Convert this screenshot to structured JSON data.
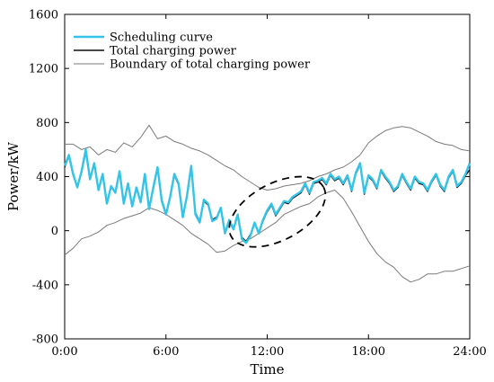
{
  "chart_data": {
    "type": "line",
    "title": "",
    "xlabel": "Time",
    "ylabel": "Power/kW",
    "xlim": [
      0,
      24
    ],
    "ylim": [
      -800,
      1600
    ],
    "x_ticks": [
      0,
      6,
      12,
      18,
      24
    ],
    "x_tick_labels": [
      "0:00",
      "6:00",
      "12:00",
      "18:00",
      "24:00"
    ],
    "y_ticks": [
      -800,
      -400,
      0,
      400,
      800,
      1200,
      1600
    ],
    "y_tick_labels": [
      "-800",
      "-400",
      "0",
      "400",
      "800",
      "1200",
      "1600"
    ],
    "grid": false,
    "legend": {
      "placement": "top-left",
      "entries": [
        "Scheduling curve",
        "Total charging power",
        "Boundary of total charging power"
      ]
    },
    "annotation": {
      "type": "dashed-ellipse",
      "center": [
        12.6,
        140
      ],
      "radius_x_hours": 3.1,
      "radius_y_kw": 210,
      "rotation_deg": -28
    },
    "series": [
      {
        "name": "Scheduling curve",
        "color": "#33c4e8",
        "x": [
          0.0,
          0.25,
          0.5,
          0.75,
          1.0,
          1.25,
          1.5,
          1.75,
          2.0,
          2.25,
          2.5,
          2.75,
          3.0,
          3.25,
          3.5,
          3.75,
          4.0,
          4.25,
          4.5,
          4.75,
          5.0,
          5.25,
          5.5,
          5.75,
          6.0,
          6.25,
          6.5,
          6.75,
          7.0,
          7.25,
          7.5,
          7.75,
          8.0,
          8.25,
          8.5,
          8.75,
          9.0,
          9.25,
          9.5,
          9.75,
          10.0,
          10.25,
          10.5,
          10.75,
          11.0,
          11.25,
          11.5,
          11.75,
          12.0,
          12.25,
          12.5,
          12.75,
          13.0,
          13.25,
          13.5,
          13.75,
          14.0,
          14.25,
          14.5,
          14.75,
          15.0,
          15.25,
          15.5,
          15.75,
          16.0,
          16.25,
          16.5,
          16.75,
          17.0,
          17.25,
          17.5,
          17.75,
          18.0,
          18.25,
          18.5,
          18.75,
          19.0,
          19.25,
          19.5,
          19.75,
          20.0,
          20.25,
          20.5,
          20.75,
          21.0,
          21.25,
          21.5,
          21.75,
          22.0,
          22.25,
          22.5,
          22.75,
          23.0,
          23.25,
          23.5,
          23.75,
          24.0
        ],
        "values": [
          480,
          560,
          420,
          320,
          440,
          600,
          380,
          500,
          300,
          420,
          200,
          330,
          280,
          440,
          200,
          350,
          180,
          320,
          210,
          420,
          160,
          320,
          470,
          220,
          120,
          250,
          420,
          350,
          100,
          260,
          480,
          120,
          60,
          230,
          200,
          70,
          90,
          170,
          -20,
          80,
          10,
          120,
          -60,
          -90,
          -40,
          60,
          -20,
          80,
          150,
          200,
          120,
          170,
          220,
          210,
          250,
          270,
          290,
          350,
          280,
          360,
          370,
          390,
          350,
          420,
          380,
          400,
          350,
          410,
          300,
          430,
          500,
          280,
          410,
          380,
          320,
          450,
          400,
          360,
          300,
          330,
          420,
          360,
          310,
          400,
          360,
          350,
          300,
          370,
          420,
          340,
          300,
          400,
          450,
          330,
          360,
          420,
          500
        ]
      },
      {
        "name": "Total charging power",
        "color": "#0d0d0d",
        "x": [
          0.0,
          0.25,
          0.5,
          0.75,
          1.0,
          1.25,
          1.5,
          1.75,
          2.0,
          2.25,
          2.5,
          2.75,
          3.0,
          3.25,
          3.5,
          3.75,
          4.0,
          4.25,
          4.5,
          4.75,
          5.0,
          5.25,
          5.5,
          5.75,
          6.0,
          6.25,
          6.5,
          6.75,
          7.0,
          7.25,
          7.5,
          7.75,
          8.0,
          8.25,
          8.5,
          8.75,
          9.0,
          9.25,
          9.5,
          9.75,
          10.0,
          10.25,
          10.5,
          10.75,
          11.0,
          11.25,
          11.5,
          11.75,
          12.0,
          12.25,
          12.5,
          12.75,
          13.0,
          13.25,
          13.5,
          13.75,
          14.0,
          14.25,
          14.5,
          14.75,
          15.0,
          15.25,
          15.5,
          15.75,
          16.0,
          16.25,
          16.5,
          16.75,
          17.0,
          17.25,
          17.5,
          17.75,
          18.0,
          18.25,
          18.5,
          18.75,
          19.0,
          19.25,
          19.5,
          19.75,
          20.0,
          20.25,
          20.5,
          20.75,
          21.0,
          21.25,
          21.5,
          21.75,
          22.0,
          22.25,
          22.5,
          22.75,
          23.0,
          23.25,
          23.5,
          23.75,
          24.0
        ],
        "values": [
          470,
          550,
          410,
          330,
          430,
          580,
          390,
          490,
          310,
          410,
          210,
          320,
          290,
          430,
          210,
          340,
          190,
          310,
          220,
          410,
          170,
          310,
          460,
          230,
          130,
          240,
          410,
          340,
          110,
          250,
          470,
          130,
          70,
          220,
          190,
          80,
          100,
          160,
          -10,
          70,
          20,
          110,
          -50,
          -80,
          -30,
          50,
          -10,
          70,
          140,
          190,
          110,
          160,
          210,
          200,
          240,
          260,
          280,
          340,
          270,
          350,
          360,
          380,
          340,
          410,
          370,
          390,
          340,
          400,
          290,
          420,
          490,
          270,
          400,
          370,
          310,
          440,
          390,
          350,
          290,
          320,
          410,
          350,
          300,
          390,
          350,
          340,
          290,
          360,
          410,
          330,
          290,
          390,
          440,
          320,
          350,
          410,
          450
        ]
      },
      {
        "name": "Boundary of total charging power",
        "color": "#7a7a7a",
        "x": [
          0.0,
          0.5,
          1.0,
          1.5,
          2.0,
          2.5,
          3.0,
          3.5,
          4.0,
          4.5,
          5.0,
          5.5,
          6.0,
          6.5,
          7.0,
          7.5,
          8.0,
          8.5,
          9.0,
          9.5,
          10.0,
          10.5,
          11.0,
          11.5,
          12.0,
          12.5,
          13.0,
          13.5,
          14.0,
          14.5,
          15.0,
          15.5,
          16.0,
          16.5,
          17.0,
          17.5,
          18.0,
          18.5,
          19.0,
          19.5,
          20.0,
          20.5,
          21.0,
          21.5,
          22.0,
          22.5,
          23.0,
          23.5,
          24.0
        ],
        "values": [
          640,
          640,
          600,
          620,
          560,
          600,
          580,
          650,
          620,
          690,
          780,
          680,
          700,
          660,
          640,
          610,
          590,
          560,
          520,
          480,
          450,
          400,
          360,
          320,
          300,
          310,
          330,
          340,
          350,
          370,
          400,
          420,
          450,
          470,
          510,
          560,
          650,
          700,
          740,
          760,
          770,
          760,
          730,
          700,
          660,
          640,
          630,
          600,
          590
        ]
      },
      {
        "name": "",
        "color": "#7a7a7a",
        "x": [
          0.0,
          0.5,
          1.0,
          1.5,
          2.0,
          2.5,
          3.0,
          3.5,
          4.0,
          4.5,
          5.0,
          5.5,
          6.0,
          6.5,
          7.0,
          7.5,
          8.0,
          8.5,
          9.0,
          9.5,
          10.0,
          10.5,
          11.0,
          11.5,
          12.0,
          12.5,
          13.0,
          13.5,
          14.0,
          14.5,
          15.0,
          15.5,
          16.0,
          16.5,
          17.0,
          17.5,
          18.0,
          18.5,
          19.0,
          19.5,
          20.0,
          20.5,
          21.0,
          21.5,
          22.0,
          22.5,
          23.0,
          23.5,
          24.0
        ],
        "values": [
          -180,
          -130,
          -60,
          -40,
          -10,
          40,
          60,
          90,
          110,
          130,
          170,
          150,
          120,
          80,
          40,
          -20,
          -60,
          -100,
          -160,
          -150,
          -110,
          -80,
          -60,
          -20,
          20,
          60,
          120,
          150,
          180,
          200,
          250,
          280,
          300,
          240,
          140,
          30,
          -80,
          -170,
          -230,
          -270,
          -340,
          -380,
          -360,
          -320,
          -320,
          -300,
          -300,
          -280,
          -260
        ]
      }
    ]
  }
}
